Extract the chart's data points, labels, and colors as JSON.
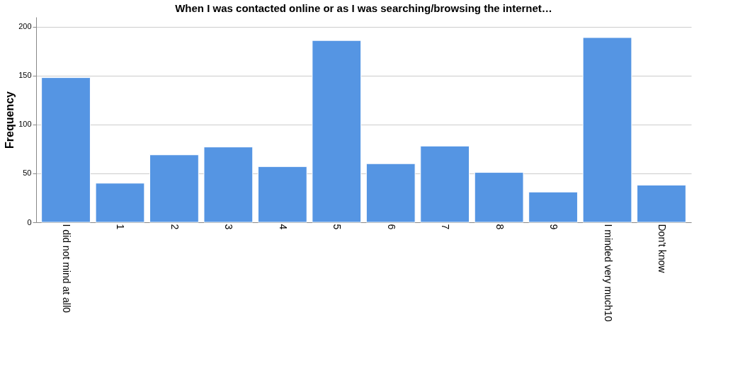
{
  "chart_data": {
    "type": "bar",
    "title": "When I was contacted online or as I was searching/browsing the internet…",
    "ylabel": "Frequency",
    "categories": [
      "I did not mind at all0",
      "1",
      "2",
      "3",
      "4",
      "5",
      "6",
      "7",
      "8",
      "9",
      "I minded very much10",
      "Don't know"
    ],
    "values": [
      148,
      40,
      69,
      77,
      57,
      186,
      60,
      78,
      51,
      31,
      189,
      38
    ],
    "color": "#5595e3",
    "ylim": [
      0,
      210
    ],
    "yticks": [
      0,
      50,
      100,
      150,
      200
    ],
    "grid": "y"
  }
}
